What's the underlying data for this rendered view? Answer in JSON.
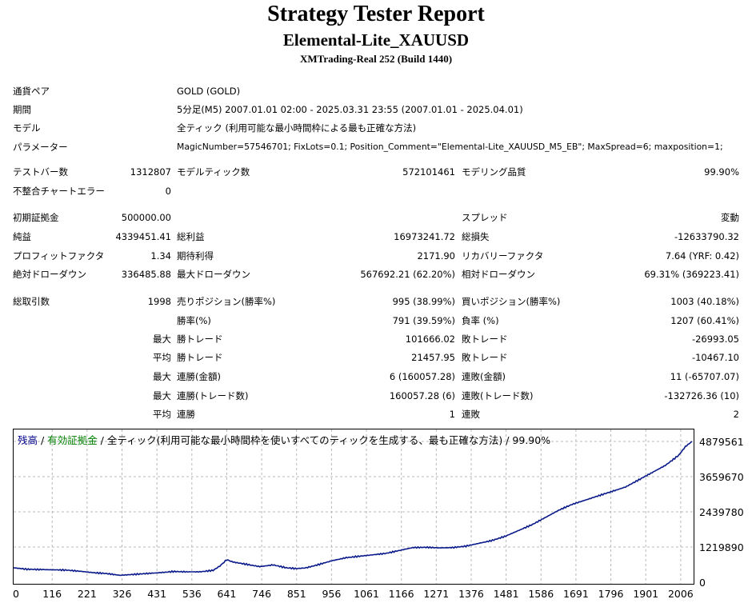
{
  "report": {
    "title": "Strategy Tester Report",
    "ea_name": "Elemental-Lite_XAUUSD",
    "server": "XMTrading-Real 252 (Build 1440)"
  },
  "info": {
    "symbol_label": "通貨ペア",
    "symbol": "GOLD (GOLD)",
    "period_label": "期間",
    "period": "5分足(M5) 2007.01.01 02:00 - 2025.03.31 23:55 (2007.01.01 - 2025.04.01)",
    "model_label": "モデル",
    "model": "全ティック (利用可能な最小時間枠による最も正確な方法)",
    "params_label": "パラメーター",
    "params": "MagicNumber=57546701; FixLots=0.1; Position_Comment=\"Elemental-Lite_XAUUSD_M5_EB\"; MaxSpread=6; maxposition=1;"
  },
  "stats": {
    "bars_label": "テストバー数",
    "bars": "1312807",
    "ticks_label": "モデルティック数",
    "ticks": "572101461",
    "quality_label": "モデリング品質",
    "quality": "99.90%",
    "mismatch_label": "不整合チャートエラー",
    "mismatch": "0",
    "deposit_label": "初期証拠金",
    "deposit": "500000.00",
    "spread_label": "スプレッド",
    "spread": "変動",
    "net_label": "純益",
    "net": "4339451.41",
    "gross_profit_label": "総利益",
    "gross_profit": "16973241.72",
    "gross_loss_label": "総損失",
    "gross_loss": "-12633790.32",
    "pf_label": "プロフィットファクタ",
    "pf": "1.34",
    "payoff_label": "期待利得",
    "payoff": "2171.90",
    "recovery_label": "リカバリーファクタ",
    "recovery": "7.64 (YRF: 0.42)",
    "abs_dd_label": "絶対ドローダウン",
    "abs_dd": "336485.88",
    "max_dd_label": "最大ドローダウン",
    "max_dd": "567692.21 (62.20%)",
    "rel_dd_label": "相対ドローダウン",
    "rel_dd": "69.31% (369223.41)",
    "trades_label": "総取引数",
    "trades": "1998",
    "short_label": "売りポジション(勝率%)",
    "short": "995 (38.99%)",
    "long_label": "買いポジション(勝率%)",
    "long": "1003 (40.18%)",
    "win_label": "勝率(%)",
    "win": "791 (39.59%)",
    "loss_label": "負率 (%)",
    "loss": "1207 (60.41%)",
    "max_word": "最大",
    "avg_word": "平均",
    "win_trade_label": "勝トレード",
    "lose_trade_label": "敗トレード",
    "largest_win": "101666.02",
    "largest_loss": "-26993.05",
    "average_win": "21457.95",
    "average_loss": "-10467.10",
    "cons_win_amt_label": "連勝(金額)",
    "cons_win_amt": "6 (160057.28)",
    "cons_loss_amt_label": "連敗(金額)",
    "cons_loss_amt": "11 (-65707.07)",
    "cons_win_cnt_label": "連勝(トレード数)",
    "cons_win_cnt": "160057.28 (6)",
    "cons_loss_cnt_label": "連敗(トレード数)",
    "cons_loss_cnt": "-132726.36 (10)",
    "avg_cons_win_label": "連勝",
    "avg_cons_win": "1",
    "avg_cons_loss_label": "連敗",
    "avg_cons_loss": "2"
  },
  "legend": {
    "balance": "残高",
    "sep1": " / ",
    "equity": "有効証拠金",
    "sep2": " / ",
    "description": "全ティック(利用可能な最小時間枠を使いすべてのティックを生成する、最も正確な方法) / 99.90%",
    "balance_color": "#00008b",
    "equity_color": "#008000"
  },
  "chart_data": {
    "type": "line",
    "x_ticks": [
      "0",
      "116",
      "221",
      "326",
      "431",
      "536",
      "641",
      "746",
      "851",
      "956",
      "1061",
      "1166",
      "1271",
      "1376",
      "1481",
      "1586",
      "1691",
      "1796",
      "1901",
      "2006"
    ],
    "y_ticks": [
      "4879561",
      "3659670",
      "2439780",
      "1219890",
      "0"
    ],
    "ylim": [
      0,
      4879561
    ],
    "xlim": [
      0,
      2040
    ],
    "grid": true,
    "series": [
      {
        "color": "#0a1a8a",
        "x": [
          0,
          40,
          80,
          120,
          160,
          200,
          240,
          280,
          320,
          360,
          400,
          440,
          480,
          520,
          560,
          600,
          620,
          641,
          660,
          700,
          740,
          780,
          820,
          851,
          880,
          920,
          956,
          1000,
          1040,
          1080,
          1120,
          1160,
          1200,
          1240,
          1280,
          1320,
          1360,
          1400,
          1440,
          1480,
          1520,
          1560,
          1600,
          1640,
          1680,
          1720,
          1760,
          1800,
          1840,
          1880,
          1920,
          1960,
          2000,
          2020,
          2040
        ],
        "y": [
          500000,
          450000,
          440000,
          430000,
          420000,
          380000,
          330000,
          300000,
          240000,
          270000,
          300000,
          330000,
          370000,
          360000,
          360000,
          410000,
          560000,
          780000,
          700000,
          620000,
          540000,
          600000,
          500000,
          470000,
          500000,
          620000,
          740000,
          850000,
          900000,
          950000,
          1000000,
          1100000,
          1200000,
          1210000,
          1190000,
          1200000,
          1250000,
          1350000,
          1450000,
          1600000,
          1800000,
          2000000,
          2250000,
          2500000,
          2700000,
          2850000,
          3000000,
          3150000,
          3300000,
          3550000,
          3800000,
          4050000,
          4400000,
          4700000,
          4879561
        ]
      }
    ]
  }
}
